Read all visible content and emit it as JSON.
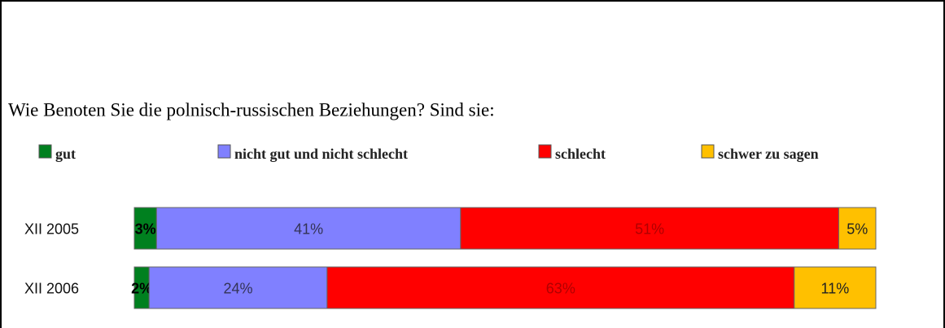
{
  "chart_data": {
    "type": "stacked_hbar",
    "title": "Wie Benoten Sie die polnisch-russischen Beziehungen? Sind sie:",
    "categories": [
      "XII 2005",
      "XII 2006"
    ],
    "series": [
      {
        "name": "gut",
        "color": "#00801f",
        "values": [
          3,
          2
        ],
        "value_labels": [
          "3%",
          "2%"
        ]
      },
      {
        "name": "nicht gut und nicht schlecht",
        "color": "#8080ff",
        "values": [
          41,
          24
        ],
        "value_labels": [
          "41%",
          "24%"
        ]
      },
      {
        "name": "schlecht",
        "color": "#ff0000",
        "values": [
          51,
          63
        ],
        "value_labels": [
          "51%",
          "63%"
        ]
      },
      {
        "name": "schwer zu sagen",
        "color": "#ffc000",
        "values": [
          5,
          11
        ],
        "value_labels": [
          "5%",
          "11%"
        ]
      }
    ],
    "xlim": [
      0,
      100
    ]
  }
}
